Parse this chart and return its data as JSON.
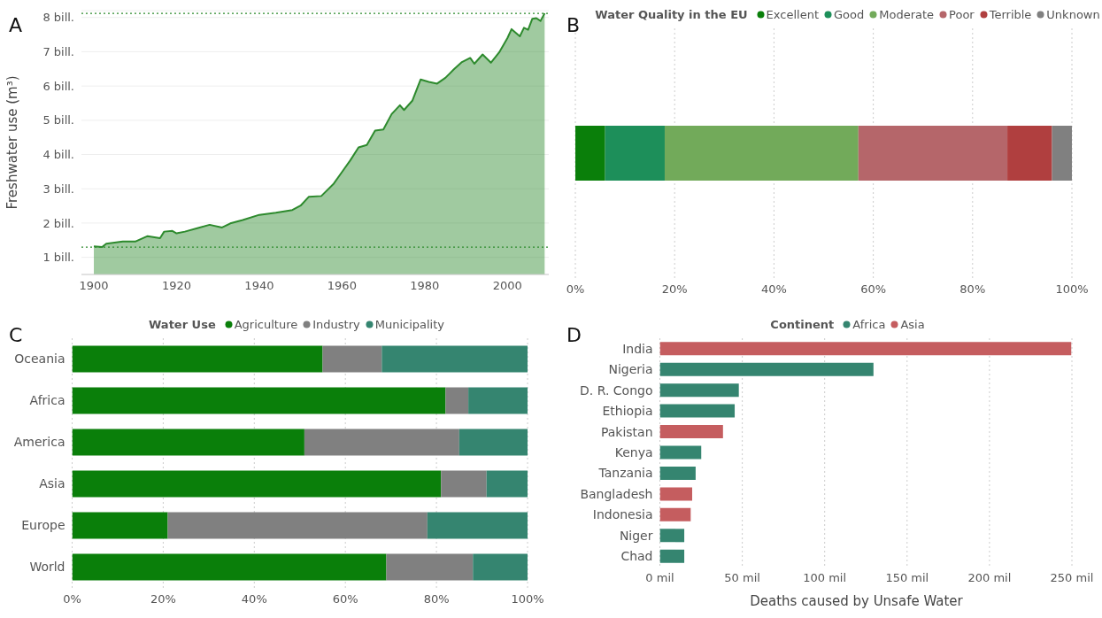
{
  "chart_data": [
    {
      "type": "area",
      "annotations": [
        "A"
      ],
      "ylabel": "Freshwater use (m³)",
      "x": [
        1900,
        1902,
        1903,
        1907,
        1910,
        1913,
        1916,
        1917,
        1919,
        1920,
        1922,
        1925,
        1928,
        1931,
        1933,
        1936,
        1940,
        1944,
        1948,
        1950,
        1952,
        1955,
        1958,
        1960,
        1962,
        1964,
        1966,
        1968,
        1970,
        1972,
        1974,
        1975,
        1977,
        1979,
        1981,
        1983,
        1985,
        1987,
        1989,
        1991,
        1992,
        1994,
        1996,
        1998,
        2000,
        2001,
        2003,
        2004,
        2005,
        2006,
        2007,
        2008,
        2009
      ],
      "series": [
        {
          "color": "#2d8a2d",
          "values": [
            1.32,
            1.3,
            1.4,
            1.46,
            1.46,
            1.62,
            1.56,
            1.75,
            1.77,
            1.7,
            1.75,
            1.85,
            1.95,
            1.87,
            1.99,
            2.09,
            2.24,
            2.3,
            2.38,
            2.51,
            2.77,
            2.79,
            3.15,
            3.49,
            3.83,
            4.21,
            4.28,
            4.7,
            4.73,
            5.18,
            5.44,
            5.3,
            5.57,
            6.19,
            6.12,
            6.07,
            6.24,
            6.48,
            6.7,
            6.82,
            6.65,
            6.92,
            6.68,
            6.98,
            7.4,
            7.66,
            7.45,
            7.7,
            7.64,
            7.96,
            7.98,
            7.9,
            8.12
          ]
        }
      ],
      "xlim": [
        1897,
        2010
      ],
      "xticks": [
        1900,
        1920,
        1940,
        1960,
        1980,
        2000
      ],
      "ylim": [
        0.5,
        8.2
      ],
      "yticks": [
        {
          "value": 1,
          "label": "1 bill."
        },
        {
          "value": 2,
          "label": "2 bill."
        },
        {
          "value": 3,
          "label": "3 bill."
        },
        {
          "value": 4,
          "label": "4 bill."
        },
        {
          "value": 5,
          "label": "5 bill."
        },
        {
          "value": 6,
          "label": "6 bill."
        },
        {
          "value": 7,
          "label": "7 bill."
        },
        {
          "value": 8,
          "label": "8 bill."
        }
      ],
      "grid": "y",
      "ref_lines": [
        {
          "axis": "y",
          "value": 8.12,
          "color": "#2d8a2d",
          "line_style": "dotted"
        },
        {
          "axis": "y",
          "value": 1.3,
          "color": "#2d8a2d",
          "line_style": "dotted"
        }
      ]
    },
    {
      "type": "bar",
      "orientation": "horizontal",
      "stacked": true,
      "annotations": [
        "B"
      ],
      "legend_title": "Water Quality in the EU",
      "legend": "top",
      "categories": [
        null
      ],
      "series": [
        {
          "name": "Excellent",
          "color": "#0a7f0a",
          "values": [
            6
          ]
        },
        {
          "name": "Good",
          "color": "#1d8f5a",
          "values": [
            12
          ]
        },
        {
          "name": "Moderate",
          "color": "#72aa5a",
          "values": [
            39
          ]
        },
        {
          "name": "Poor",
          "color": "#b5666a",
          "values": [
            30
          ]
        },
        {
          "name": "Terrible",
          "color": "#b03f3f",
          "values": [
            9
          ]
        },
        {
          "name": "Unknown",
          "color": "#808080",
          "values": [
            4
          ]
        }
      ],
      "xlim": [
        0,
        100
      ],
      "xticks": [
        {
          "value": 0,
          "label": "0%"
        },
        {
          "value": 20,
          "label": "20%"
        },
        {
          "value": 40,
          "label": "40%"
        },
        {
          "value": 60,
          "label": "60%"
        },
        {
          "value": 80,
          "label": "80%"
        },
        {
          "value": 100,
          "label": "100%"
        }
      ],
      "grid": "x"
    },
    {
      "type": "bar",
      "orientation": "horizontal",
      "stacked": true,
      "annotations": [
        "C"
      ],
      "legend_title": "Water Use",
      "legend": "top",
      "categories": [
        "Oceania",
        "Africa",
        "America",
        "Asia",
        "Europe",
        "World"
      ],
      "series": [
        {
          "name": "Agriculture",
          "color": "#0a7f0a",
          "values": [
            55,
            82,
            51,
            81,
            21,
            69
          ]
        },
        {
          "name": "Industry",
          "color": "#808080",
          "values": [
            13,
            5,
            34,
            10,
            57,
            19
          ]
        },
        {
          "name": "Municipality",
          "color": "#358570",
          "values": [
            32,
            13,
            15,
            9,
            22,
            12
          ]
        }
      ],
      "xlim": [
        0,
        100
      ],
      "xticks": [
        {
          "value": 0,
          "label": "0%"
        },
        {
          "value": 20,
          "label": "20%"
        },
        {
          "value": 40,
          "label": "40%"
        },
        {
          "value": 60,
          "label": "60%"
        },
        {
          "value": 80,
          "label": "80%"
        },
        {
          "value": 100,
          "label": "100%"
        }
      ],
      "grid": "x"
    },
    {
      "type": "bar",
      "orientation": "horizontal",
      "stacked": true,
      "annotations": [
        "D"
      ],
      "legend_title": "Continent",
      "legend": "top",
      "xlabel": "Deaths caused by Unsafe Water",
      "categories": [
        "India",
        "Nigeria",
        "D. R. Congo",
        "Ethiopia",
        "Pakistan",
        "Kenya",
        "Tanzania",
        "Bangladesh",
        "Indonesia",
        "Niger",
        "Chad"
      ],
      "series": [
        {
          "name": "Africa",
          "color": "#358570",
          "values": [
            null,
            129.6,
            47.9,
            45.4,
            null,
            25.1,
            21.7,
            null,
            null,
            14.8,
            14.8
          ]
        },
        {
          "name": "Asia",
          "color": "#c55d5f",
          "values": [
            249.6,
            null,
            null,
            null,
            38.3,
            null,
            null,
            19.6,
            18.7,
            null,
            null
          ]
        }
      ],
      "xlim": [
        0,
        250
      ],
      "xticks": [
        {
          "value": 0,
          "label": "0 mil"
        },
        {
          "value": 50,
          "label": "50 mil"
        },
        {
          "value": 100,
          "label": "100 mil"
        },
        {
          "value": 150,
          "label": "150 mil"
        },
        {
          "value": 200,
          "label": "200 mil"
        },
        {
          "value": 250,
          "label": "250 mil"
        }
      ],
      "grid": "x"
    }
  ]
}
